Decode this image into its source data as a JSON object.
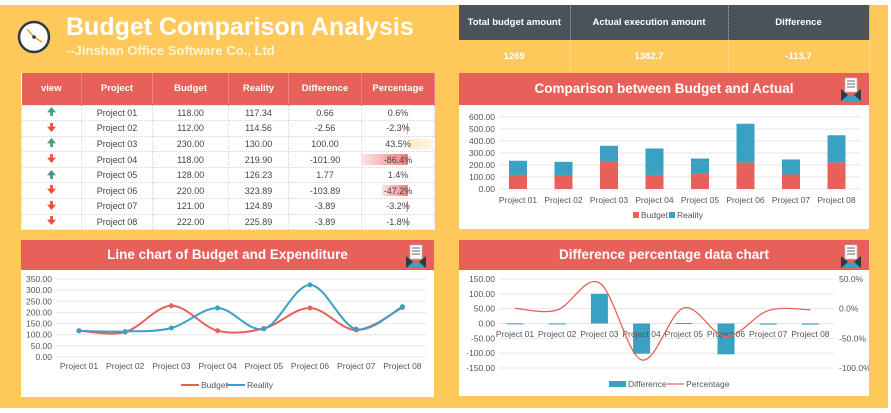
{
  "header": {
    "title": "Budget Comparison Analysis",
    "subtitle": "--Jinshan Office Software Co., Ltd"
  },
  "table": {
    "columns": [
      "view",
      "Project",
      "Budget",
      "Reality",
      "Difference",
      "Percentage"
    ],
    "rows": [
      {
        "trend": "up",
        "project": "Project 01",
        "budget": "118.00",
        "reality": "117.34",
        "difference": "0.66",
        "percentage": "0.6%",
        "pct": 0.6
      },
      {
        "trend": "down",
        "project": "Project 02",
        "budget": "112.00",
        "reality": "114.56",
        "difference": "-2.56",
        "percentage": "-2.3%",
        "pct": -2.3
      },
      {
        "trend": "up",
        "project": "Project 03",
        "budget": "230.00",
        "reality": "130.00",
        "difference": "100.00",
        "percentage": "43.5%",
        "pct": 43.5
      },
      {
        "trend": "down",
        "project": "Project 04",
        "budget": "118.00",
        "reality": "219.90",
        "difference": "-101.90",
        "percentage": "-86.4%",
        "pct": -86.4
      },
      {
        "trend": "up",
        "project": "Project 05",
        "budget": "128.00",
        "reality": "126.23",
        "difference": "1.77",
        "percentage": "1.4%",
        "pct": 1.4
      },
      {
        "trend": "down",
        "project": "Project 06",
        "budget": "220.00",
        "reality": "323.89",
        "difference": "-103.89",
        "percentage": "-47.2%",
        "pct": -47.2
      },
      {
        "trend": "down",
        "project": "Project 07",
        "budget": "121.00",
        "reality": "124.89",
        "difference": "-3.89",
        "percentage": "-3.2%",
        "pct": -3.2
      },
      {
        "trend": "down",
        "project": "Project 08",
        "budget": "222.00",
        "reality": "225.89",
        "difference": "-3.89",
        "percentage": "-1.8%",
        "pct": -1.8
      }
    ]
  },
  "summary": {
    "headers": [
      "Total budget amount",
      "Actual execution amount",
      "Difference"
    ],
    "values": [
      "1269",
      "1382.7",
      "-113.7"
    ]
  },
  "colors": {
    "red": "#E8605A",
    "blue": "#3BA1C3",
    "yellow": "#FFC85A",
    "dark": "#4A535C",
    "up": "#4A9A82",
    "down": "#E0553C"
  },
  "chart_data": [
    {
      "type": "bar",
      "title": "Comparison between Budget and Actual",
      "stacked": true,
      "categories": [
        "Project 01",
        "Project 02",
        "Project 03",
        "Project 04",
        "Project 05",
        "Project 06",
        "Project 07",
        "Project 08"
      ],
      "series": [
        {
          "name": "Budget",
          "values": [
            118,
            112,
            230,
            118,
            128,
            220,
            121,
            222
          ]
        },
        {
          "name": "Reality",
          "values": [
            117.34,
            114.56,
            130,
            219.9,
            126.23,
            323.89,
            124.89,
            225.89
          ]
        }
      ],
      "ylim": [
        0,
        600
      ],
      "yticks": [
        "0.00",
        "100.00",
        "200.00",
        "300.00",
        "400.00",
        "500.00",
        "600.00"
      ],
      "legend": "bottom"
    },
    {
      "type": "line",
      "title": "Line chart of Budget and Expenditure",
      "categories": [
        "Project 01",
        "Project 02",
        "Project 03",
        "Project 04",
        "Project 05",
        "Project 06",
        "Project 07",
        "Project 08"
      ],
      "series": [
        {
          "name": "Budget",
          "values": [
            118,
            112,
            230,
            118,
            128,
            220,
            121,
            222
          ]
        },
        {
          "name": "Reality",
          "values": [
            117.34,
            114.56,
            130,
            219.9,
            126.23,
            323.89,
            124.89,
            225.89
          ]
        }
      ],
      "ylim": [
        0,
        350
      ],
      "yticks": [
        "0.00",
        "50.00",
        "100.00",
        "150.00",
        "200.00",
        "250.00",
        "300.00",
        "350.00"
      ],
      "legend": "bottom"
    },
    {
      "type": "bar",
      "title": "Difference percentage data chart",
      "categories": [
        "Project 01",
        "Project 02",
        "Project 03",
        "Project 04",
        "Project 05",
        "Project 06",
        "Project 07",
        "Project 08"
      ],
      "series": [
        {
          "name": "Difference",
          "type": "bar",
          "values": [
            0.66,
            -2.56,
            100,
            -101.9,
            1.77,
            -103.89,
            -3.89,
            -3.89
          ]
        },
        {
          "name": "Percentage",
          "type": "line",
          "axis": "right",
          "values": [
            0.6,
            -2.3,
            43.5,
            -86.4,
            1.4,
            -47.2,
            -3.2,
            -1.8
          ]
        }
      ],
      "ylim": [
        -150,
        150
      ],
      "yticks": [
        "-150.00",
        "-100.00",
        "-50.00",
        "0.00",
        "50.00",
        "100.00",
        "150.00"
      ],
      "y2lim": [
        -100,
        50
      ],
      "y2ticks": [
        "-100.0%",
        "-50.0%",
        "0.0%",
        "50.0%"
      ],
      "legend": "bottom"
    }
  ]
}
